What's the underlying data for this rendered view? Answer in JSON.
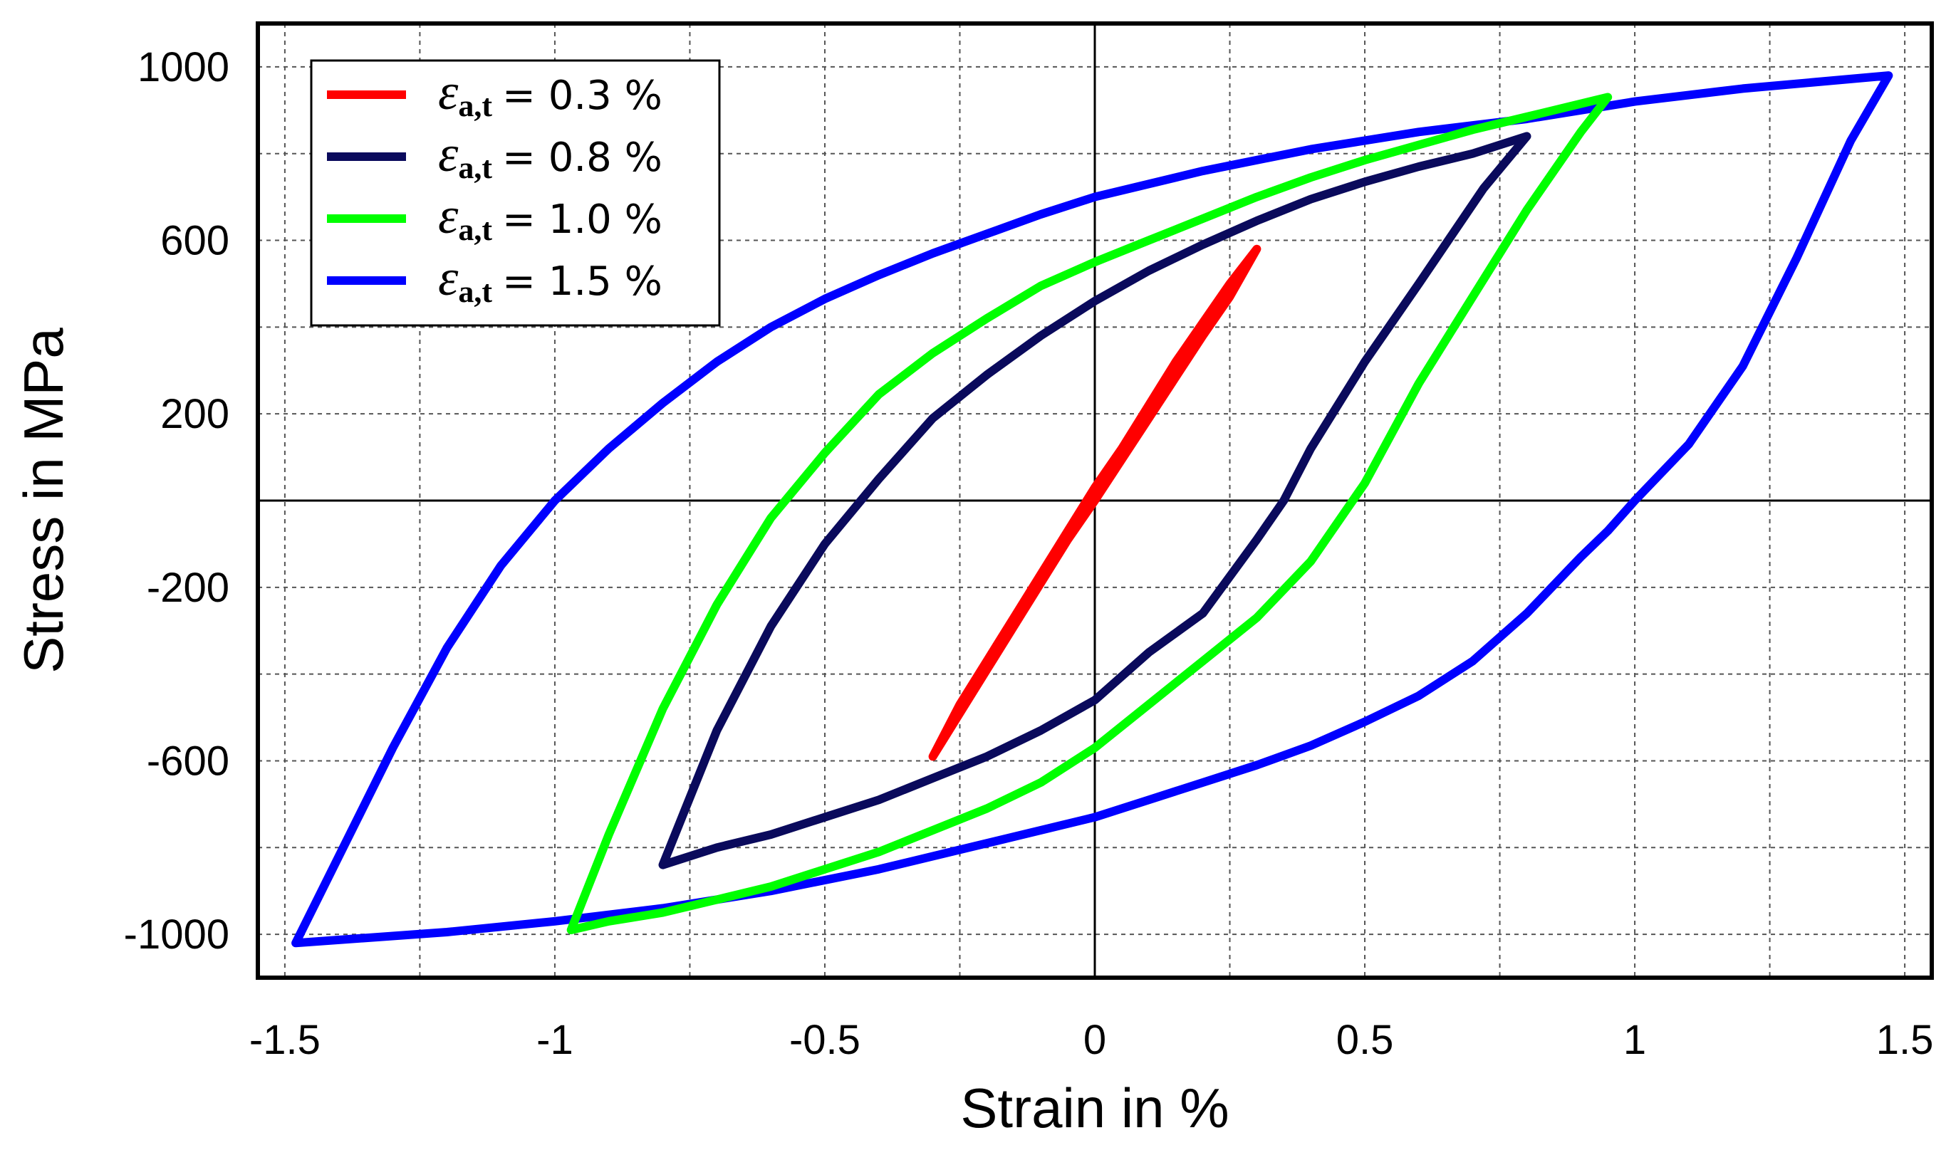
{
  "chart_data": {
    "type": "line",
    "title": "",
    "xlabel": "Strain in %",
    "ylabel": "Stress in MPa",
    "xlim": [
      -1.55,
      1.55
    ],
    "ylim": [
      -1100,
      1100
    ],
    "x_ticks": [
      -1.5,
      -1,
      -0.5,
      0,
      0.5,
      1,
      1.5
    ],
    "x_tick_labels": [
      "-1.5",
      "-1",
      "-0.5",
      "0",
      "0.5",
      "1",
      "1.5"
    ],
    "y_ticks": [
      -1000,
      -600,
      -200,
      200,
      600,
      1000
    ],
    "y_tick_labels": [
      "-1000",
      "-600",
      "-200",
      "200",
      "600",
      "1000"
    ],
    "grid": true,
    "legend_position": "top-left",
    "legend_symbol": "ε",
    "legend_subscript": "a,t",
    "series": [
      {
        "name": "= 0.3 %",
        "color": "#ff0000",
        "amplitude": 0.3,
        "x": [
          -0.3,
          -0.25,
          -0.2,
          -0.15,
          -0.1,
          -0.05,
          0,
          0.05,
          0.1,
          0.15,
          0.2,
          0.25,
          0.3,
          0.25,
          0.2,
          0.15,
          0.1,
          0.05,
          0,
          -0.05,
          -0.1,
          -0.15,
          -0.2,
          -0.25,
          -0.3
        ],
        "y": [
          -590,
          -490,
          -390,
          -290,
          -190,
          -90,
          0,
          95,
          190,
          285,
          380,
          470,
          580,
          500,
          410,
          320,
          220,
          120,
          30,
          -70,
          -170,
          -270,
          -370,
          -470,
          -590
        ]
      },
      {
        "name": "= 0.8 %",
        "color": "#0a0a5c",
        "amplitude": 0.8,
        "x": [
          -0.8,
          -0.7,
          -0.6,
          -0.5,
          -0.4,
          -0.3,
          -0.2,
          -0.1,
          0,
          0.1,
          0.2,
          0.3,
          0.4,
          0.5,
          0.6,
          0.7,
          0.8,
          0.72,
          0.6,
          0.5,
          0.4,
          0.35,
          0.3,
          0.2,
          0.1,
          0,
          -0.1,
          -0.2,
          -0.3,
          -0.4,
          -0.5,
          -0.6,
          -0.7,
          -0.8
        ],
        "y": [
          -840,
          -530,
          -290,
          -100,
          50,
          190,
          290,
          380,
          460,
          530,
          590,
          645,
          695,
          735,
          770,
          800,
          840,
          720,
          500,
          320,
          120,
          0,
          -90,
          -260,
          -350,
          -460,
          -530,
          -590,
          -640,
          -690,
          -730,
          -770,
          -800,
          -840
        ]
      },
      {
        "name": "= 1.0 %",
        "color": "#00ff00",
        "amplitude": 1.0,
        "x": [
          -0.97,
          -0.9,
          -0.8,
          -0.7,
          -0.6,
          -0.5,
          -0.4,
          -0.3,
          -0.2,
          -0.1,
          0,
          0.1,
          0.2,
          0.3,
          0.4,
          0.5,
          0.6,
          0.7,
          0.8,
          0.95,
          0.9,
          0.8,
          0.7,
          0.6,
          0.5,
          0.4,
          0.3,
          0.2,
          0.1,
          0,
          -0.1,
          -0.2,
          -0.3,
          -0.4,
          -0.5,
          -0.6,
          -0.7,
          -0.8,
          -0.9,
          -0.97
        ],
        "y": [
          -990,
          -770,
          -480,
          -240,
          -40,
          110,
          245,
          340,
          420,
          495,
          550,
          600,
          650,
          700,
          745,
          785,
          820,
          855,
          885,
          930,
          850,
          670,
          470,
          270,
          40,
          -140,
          -270,
          -370,
          -470,
          -570,
          -650,
          -710,
          -760,
          -810,
          -850,
          -890,
          -920,
          -950,
          -970,
          -990
        ]
      },
      {
        "name": "= 1.5 %",
        "color": "#0000ff",
        "amplitude": 1.5,
        "x": [
          -1.48,
          -1.4,
          -1.3,
          -1.2,
          -1.1,
          -1.0,
          -0.9,
          -0.8,
          -0.7,
          -0.6,
          -0.5,
          -0.4,
          -0.3,
          -0.2,
          -0.1,
          0,
          0.2,
          0.4,
          0.6,
          0.8,
          1.0,
          1.2,
          1.47,
          1.4,
          1.3,
          1.2,
          1.1,
          1.0,
          0.95,
          0.9,
          0.8,
          0.7,
          0.6,
          0.5,
          0.4,
          0.3,
          0.2,
          0.1,
          0,
          -0.2,
          -0.4,
          -0.6,
          -0.8,
          -1.0,
          -1.2,
          -1.48
        ],
        "y": [
          -1020,
          -820,
          -570,
          -340,
          -150,
          0,
          120,
          225,
          320,
          400,
          465,
          520,
          570,
          615,
          660,
          700,
          760,
          810,
          850,
          880,
          920,
          950,
          980,
          830,
          560,
          310,
          130,
          0,
          -70,
          -130,
          -260,
          -370,
          -450,
          -510,
          -565,
          -610,
          -650,
          -690,
          -730,
          -790,
          -850,
          -900,
          -940,
          -970,
          -995,
          -1020
        ]
      }
    ]
  }
}
